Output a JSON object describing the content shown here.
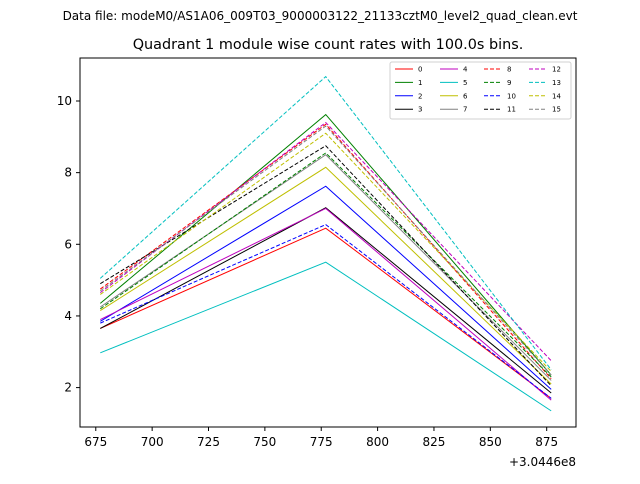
{
  "chart_data": {
    "type": "line",
    "suptitle": "Data file: modeM0/AS1A06_009T03_9000003122_21133cztM0_level2_quad_clean.evt",
    "title": "Quadrant 1 module wise count rates with 100.0s bins.",
    "xlabel": "",
    "ylabel": "",
    "x_offset_label": "+3.0446e8",
    "x": [
      677,
      777,
      877
    ],
    "xlim": [
      668,
      888
    ],
    "ylim": [
      0.9,
      11.2
    ],
    "x_ticks": [
      675,
      700,
      725,
      750,
      775,
      800,
      825,
      850,
      875
    ],
    "y_ticks": [
      2,
      4,
      6,
      8,
      10
    ],
    "legend_position": "top-right",
    "series": [
      {
        "name": "0",
        "color": "#ff0000",
        "dashed": false,
        "values": [
          3.65,
          6.45,
          1.7
        ]
      },
      {
        "name": "1",
        "color": "#008000",
        "dashed": false,
        "values": [
          4.35,
          9.62,
          2.35
        ]
      },
      {
        "name": "2",
        "color": "#0000ff",
        "dashed": false,
        "values": [
          3.85,
          7.62,
          1.95
        ]
      },
      {
        "name": "3",
        "color": "#000000",
        "dashed": false,
        "values": [
          3.65,
          7.02,
          1.85
        ]
      },
      {
        "name": "4",
        "color": "#bf00bf",
        "dashed": false,
        "values": [
          3.9,
          7.0,
          1.65
        ]
      },
      {
        "name": "5",
        "color": "#00bfbf",
        "dashed": false,
        "values": [
          2.97,
          5.5,
          1.35
        ]
      },
      {
        "name": "6",
        "color": "#bfbf00",
        "dashed": false,
        "values": [
          4.15,
          8.15,
          2.1
        ]
      },
      {
        "name": "7",
        "color": "#808080",
        "dashed": false,
        "values": [
          4.25,
          8.5,
          2.2
        ]
      },
      {
        "name": "8",
        "color": "#ff0000",
        "dashed": true,
        "values": [
          4.75,
          9.35,
          2.25
        ]
      },
      {
        "name": "9",
        "color": "#008000",
        "dashed": true,
        "values": [
          4.2,
          8.55,
          2.3
        ]
      },
      {
        "name": "10",
        "color": "#0000ff",
        "dashed": true,
        "values": [
          3.8,
          6.55,
          1.7
        ]
      },
      {
        "name": "11",
        "color": "#000000",
        "dashed": true,
        "values": [
          4.9,
          8.75,
          2.05
        ]
      },
      {
        "name": "12",
        "color": "#bf00bf",
        "dashed": true,
        "values": [
          4.65,
          9.4,
          2.75
        ]
      },
      {
        "name": "13",
        "color": "#00bfbf",
        "dashed": true,
        "values": [
          5.05,
          10.68,
          2.5
        ]
      },
      {
        "name": "14",
        "color": "#bfbf00",
        "dashed": true,
        "values": [
          4.6,
          9.1,
          2.45
        ]
      },
      {
        "name": "15",
        "color": "#808080",
        "dashed": true,
        "values": [
          4.7,
          9.3,
          2.35
        ]
      }
    ]
  }
}
